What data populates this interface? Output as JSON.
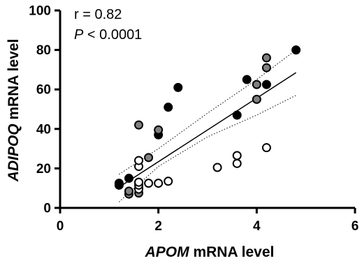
{
  "chart_data": {
    "type": "scatter",
    "xlabel": {
      "italic": "APOM",
      "rest": " mRNA level"
    },
    "ylabel": {
      "italic": "ADIPOQ",
      "rest": " mRNA level"
    },
    "xlim": [
      0,
      6
    ],
    "ylim": [
      0,
      100
    ],
    "xticks": [
      "0",
      "2",
      "4",
      "6"
    ],
    "yticks": [
      "0",
      "20",
      "40",
      "60",
      "80",
      "100"
    ],
    "annotation": {
      "r_text": "r = 0.82",
      "p_italic": "P",
      "p_rest": " < 0.0001"
    },
    "colors": {
      "black": "#000000",
      "gray": "#808080",
      "open": "#ffffff"
    },
    "series": [
      {
        "group": "black",
        "points": [
          [
            1.2,
            11.5
          ],
          [
            1.2,
            12.5
          ],
          [
            1.4,
            15
          ],
          [
            1.6,
            13
          ],
          [
            2.0,
            37
          ],
          [
            2.2,
            51
          ],
          [
            2.4,
            61
          ],
          [
            3.6,
            47
          ],
          [
            3.8,
            65
          ],
          [
            4.2,
            62.5
          ],
          [
            4.8,
            80
          ]
        ]
      },
      {
        "group": "gray",
        "points": [
          [
            1.4,
            7
          ],
          [
            1.4,
            8.5
          ],
          [
            1.6,
            7.5
          ],
          [
            1.6,
            10
          ],
          [
            1.6,
            42
          ],
          [
            1.8,
            25.5
          ],
          [
            2.0,
            39.5
          ],
          [
            4.0,
            55
          ],
          [
            4.0,
            62.5
          ],
          [
            4.2,
            71
          ],
          [
            4.2,
            76
          ]
        ]
      },
      {
        "group": "open",
        "points": [
          [
            1.6,
            9.5
          ],
          [
            1.6,
            11.5
          ],
          [
            1.6,
            13
          ],
          [
            1.6,
            21
          ],
          [
            1.6,
            24
          ],
          [
            1.8,
            12.5
          ],
          [
            2.0,
            12.5
          ],
          [
            2.2,
            13.5
          ],
          [
            3.2,
            20.5
          ],
          [
            3.6,
            22.5
          ],
          [
            3.6,
            26.5
          ],
          [
            4.2,
            30.5
          ]
        ]
      }
    ],
    "fit_line": {
      "x": [
        1.2,
        4.8
      ],
      "y": [
        10.5,
        68.5
      ]
    },
    "ci_upper": {
      "x": [
        1.2,
        2.0,
        3.0,
        4.0,
        4.8
      ],
      "y": [
        17,
        30,
        48,
        65,
        80
      ]
    },
    "ci_lower": {
      "x": [
        1.2,
        2.0,
        3.0,
        4.0,
        4.8
      ],
      "y": [
        3,
        21,
        36,
        47,
        57
      ]
    }
  }
}
